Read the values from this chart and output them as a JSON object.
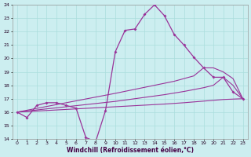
{
  "x": [
    0,
    1,
    2,
    3,
    4,
    5,
    6,
    7,
    8,
    9,
    10,
    11,
    12,
    13,
    14,
    15,
    16,
    17,
    18,
    19,
    20,
    21,
    22,
    23
  ],
  "y_main": [
    16.0,
    15.6,
    16.5,
    16.7,
    16.7,
    16.5,
    16.3,
    14.1,
    13.8,
    16.1,
    20.5,
    22.1,
    22.2,
    23.3,
    24.0,
    23.2,
    21.8,
    21.0,
    20.1,
    19.3,
    18.6,
    18.6,
    17.5,
    17.0
  ],
  "y_fan_upper": [
    16.0,
    16.14,
    16.28,
    16.42,
    16.56,
    16.7,
    16.84,
    16.98,
    17.12,
    17.26,
    17.4,
    17.55,
    17.7,
    17.85,
    18.0,
    18.15,
    18.3,
    18.5,
    18.7,
    19.3,
    19.3,
    19.0,
    18.5,
    17.0
  ],
  "y_fan_mid": [
    16.0,
    16.08,
    16.16,
    16.24,
    16.32,
    16.4,
    16.48,
    16.56,
    16.64,
    16.72,
    16.8,
    16.9,
    17.0,
    17.1,
    17.2,
    17.3,
    17.42,
    17.54,
    17.68,
    17.82,
    18.0,
    18.6,
    18.0,
    17.0
  ],
  "y_fan_lower": [
    16.0,
    16.04,
    16.08,
    16.12,
    16.16,
    16.2,
    16.24,
    16.28,
    16.32,
    16.36,
    16.4,
    16.44,
    16.48,
    16.52,
    16.56,
    16.6,
    16.65,
    16.7,
    16.76,
    16.82,
    16.88,
    16.94,
    16.97,
    17.0
  ],
  "bg": "#cceef0",
  "grid_color": "#aadddd",
  "line_color": "#993399",
  "ylim": [
    14,
    24
  ],
  "xlim_min": -0.5,
  "xlim_max": 23.5,
  "yticks": [
    14,
    15,
    16,
    17,
    18,
    19,
    20,
    21,
    22,
    23,
    24
  ],
  "xticks": [
    0,
    1,
    2,
    3,
    4,
    5,
    6,
    7,
    8,
    9,
    10,
    11,
    12,
    13,
    14,
    15,
    16,
    17,
    18,
    19,
    20,
    21,
    22,
    23
  ],
  "xlabel": "Windchill (Refroidissement éolien,°C)",
  "tick_fs": 4.5,
  "label_fs": 5.5
}
